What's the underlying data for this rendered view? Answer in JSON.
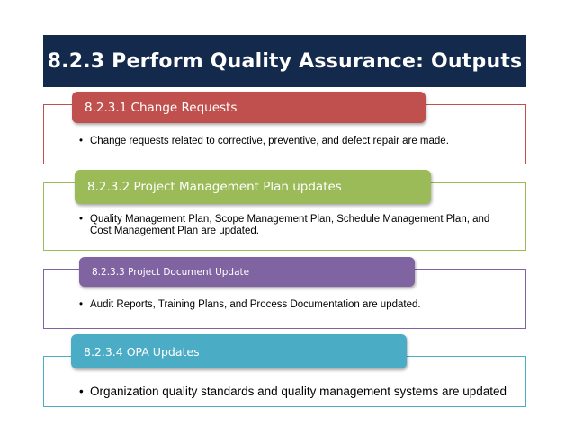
{
  "title": "8.2.3 Perform Quality Assurance: Outputs",
  "sections": [
    {
      "heading": "8.2.3.1 Change Requests",
      "text": "Change requests related to corrective, preventive, and defect repair are made.",
      "color": "#c0504d"
    },
    {
      "heading": "8.2.3.2 Project Management Plan updates",
      "text": "Quality Management Plan, Scope Management Plan, Schedule Management Plan, and Cost Management Plan are updated.",
      "color": "#9bbb59"
    },
    {
      "heading": "8.2.3.3 Project Document Update",
      "text": "Audit Reports, Training Plans, and Process Documentation are updated.",
      "color": "#8064a2"
    },
    {
      "heading": "8.2.3.4 OPA Updates",
      "text": "Organization quality standards and quality management systems are updated",
      "color": "#4bacc6"
    }
  ]
}
